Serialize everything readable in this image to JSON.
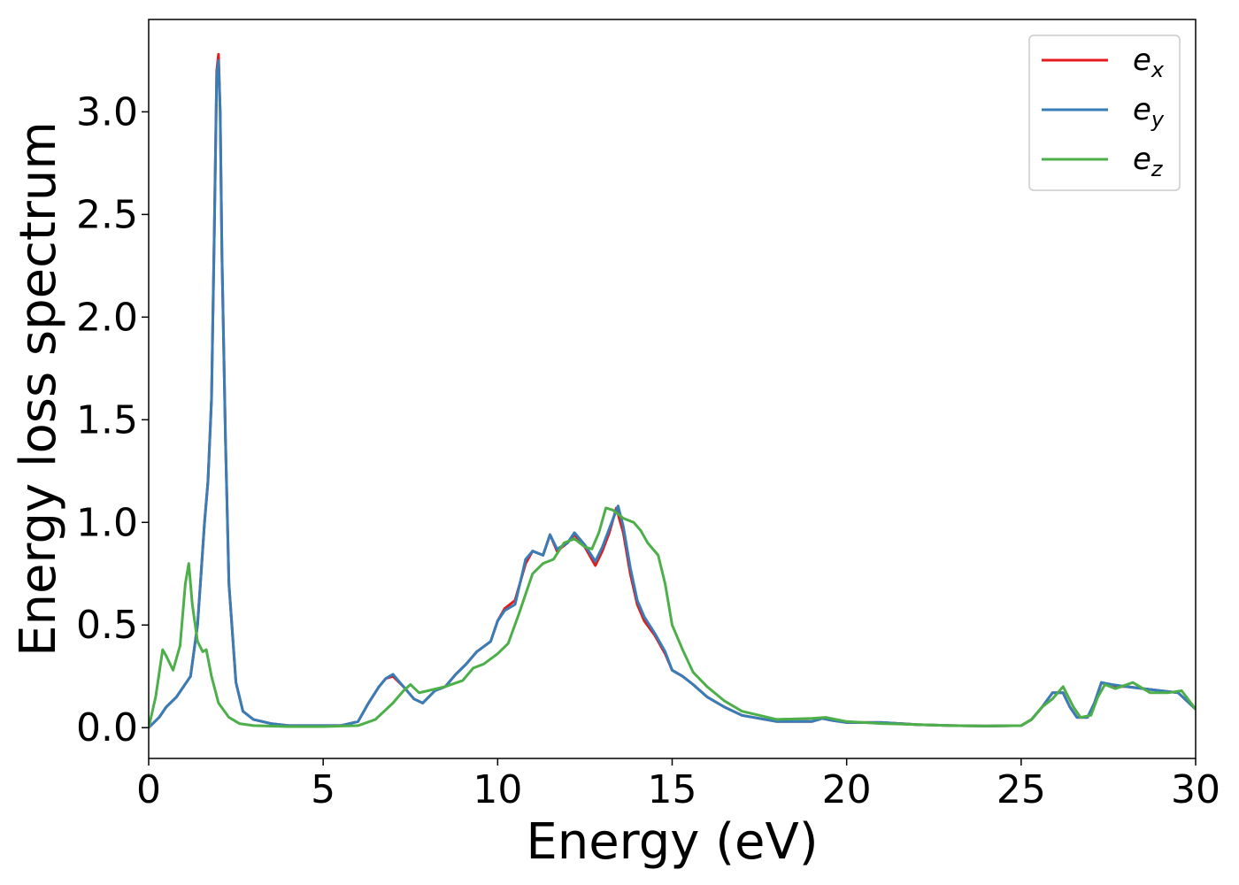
{
  "chart_data": {
    "type": "line",
    "xlabel": "Energy (eV)",
    "ylabel": "Energy loss spectrum",
    "xlim": [
      0,
      30
    ],
    "ylim": [
      -0.15,
      3.45
    ],
    "xticks": [
      "0",
      "5",
      "10",
      "15",
      "20",
      "25",
      "30"
    ],
    "yticks": [
      "0.0",
      "0.5",
      "1.0",
      "1.5",
      "2.0",
      "2.5",
      "3.0"
    ],
    "grid": false,
    "legend_position": "top-right",
    "series": [
      {
        "name": "e_x",
        "label_base": "e",
        "label_sub": "x",
        "color": "#e41a1c",
        "points": [
          [
            0,
            0
          ],
          [
            0.3,
            0.05
          ],
          [
            0.5,
            0.1
          ],
          [
            0.8,
            0.15
          ],
          [
            1.2,
            0.25
          ],
          [
            1.4,
            0.5
          ],
          [
            1.5,
            0.75
          ],
          [
            1.6,
            1.0
          ],
          [
            1.7,
            1.2
          ],
          [
            1.8,
            1.6
          ],
          [
            1.88,
            2.4
          ],
          [
            1.95,
            3.2
          ],
          [
            2.0,
            3.28
          ],
          [
            2.05,
            3.0
          ],
          [
            2.1,
            2.3
          ],
          [
            2.2,
            1.4
          ],
          [
            2.3,
            0.7
          ],
          [
            2.5,
            0.22
          ],
          [
            2.7,
            0.08
          ],
          [
            3.0,
            0.04
          ],
          [
            3.5,
            0.02
          ],
          [
            4,
            0.01
          ],
          [
            5,
            0.01
          ],
          [
            5.5,
            0.01
          ],
          [
            6,
            0.03
          ],
          [
            6.3,
            0.12
          ],
          [
            6.6,
            0.2
          ],
          [
            6.8,
            0.24
          ],
          [
            7.0,
            0.25
          ],
          [
            7.3,
            0.2
          ],
          [
            7.6,
            0.14
          ],
          [
            7.85,
            0.12
          ],
          [
            8.2,
            0.18
          ],
          [
            8.5,
            0.2
          ],
          [
            8.8,
            0.26
          ],
          [
            9.1,
            0.31
          ],
          [
            9.4,
            0.37
          ],
          [
            9.8,
            0.42
          ],
          [
            10.0,
            0.52
          ],
          [
            10.2,
            0.58
          ],
          [
            10.5,
            0.62
          ],
          [
            10.8,
            0.8
          ],
          [
            11.0,
            0.86
          ],
          [
            11.3,
            0.84
          ],
          [
            11.5,
            0.94
          ],
          [
            11.7,
            0.86
          ],
          [
            12.0,
            0.9
          ],
          [
            12.2,
            0.94
          ],
          [
            12.5,
            0.88
          ],
          [
            12.8,
            0.79
          ],
          [
            13.0,
            0.86
          ],
          [
            13.2,
            0.95
          ],
          [
            13.4,
            1.07
          ],
          [
            13.6,
            0.95
          ],
          [
            13.8,
            0.75
          ],
          [
            14.0,
            0.6
          ],
          [
            14.2,
            0.52
          ],
          [
            14.5,
            0.45
          ],
          [
            14.8,
            0.36
          ],
          [
            15.0,
            0.28
          ],
          [
            15.3,
            0.25
          ],
          [
            15.6,
            0.21
          ],
          [
            16.0,
            0.15
          ],
          [
            16.5,
            0.1
          ],
          [
            17,
            0.06
          ],
          [
            18,
            0.03
          ],
          [
            19,
            0.03
          ],
          [
            19.3,
            0.045
          ],
          [
            19.6,
            0.035
          ],
          [
            20,
            0.025
          ],
          [
            21,
            0.025
          ],
          [
            22,
            0.015
          ],
          [
            23,
            0.01
          ],
          [
            24,
            0.008
          ],
          [
            25,
            0.01
          ],
          [
            25.3,
            0.04
          ],
          [
            25.6,
            0.1
          ],
          [
            25.9,
            0.17
          ],
          [
            26.2,
            0.17
          ],
          [
            26.4,
            0.1
          ],
          [
            26.6,
            0.05
          ],
          [
            26.9,
            0.05
          ],
          [
            27.1,
            0.12
          ],
          [
            27.3,
            0.22
          ],
          [
            27.6,
            0.2
          ],
          [
            28,
            0.2
          ],
          [
            28.5,
            0.19
          ],
          [
            29,
            0.18
          ],
          [
            29.5,
            0.17
          ],
          [
            30,
            0.09
          ]
        ]
      },
      {
        "name": "e_y",
        "label_base": "e",
        "label_sub": "y",
        "color": "#377eb8",
        "points": [
          [
            0,
            0
          ],
          [
            0.3,
            0.05
          ],
          [
            0.5,
            0.1
          ],
          [
            0.8,
            0.15
          ],
          [
            1.2,
            0.25
          ],
          [
            1.4,
            0.5
          ],
          [
            1.5,
            0.75
          ],
          [
            1.6,
            1.0
          ],
          [
            1.7,
            1.2
          ],
          [
            1.8,
            1.6
          ],
          [
            1.88,
            2.4
          ],
          [
            1.95,
            3.18
          ],
          [
            2.0,
            3.25
          ],
          [
            2.05,
            3.0
          ],
          [
            2.1,
            2.3
          ],
          [
            2.2,
            1.4
          ],
          [
            2.3,
            0.7
          ],
          [
            2.5,
            0.22
          ],
          [
            2.7,
            0.08
          ],
          [
            3.0,
            0.04
          ],
          [
            3.5,
            0.02
          ],
          [
            4,
            0.01
          ],
          [
            5,
            0.01
          ],
          [
            5.5,
            0.01
          ],
          [
            6,
            0.03
          ],
          [
            6.3,
            0.12
          ],
          [
            6.6,
            0.2
          ],
          [
            6.8,
            0.24
          ],
          [
            7.0,
            0.26
          ],
          [
            7.3,
            0.2
          ],
          [
            7.6,
            0.14
          ],
          [
            7.85,
            0.12
          ],
          [
            8.2,
            0.18
          ],
          [
            8.5,
            0.2
          ],
          [
            8.8,
            0.26
          ],
          [
            9.1,
            0.31
          ],
          [
            9.4,
            0.37
          ],
          [
            9.8,
            0.42
          ],
          [
            10.0,
            0.52
          ],
          [
            10.2,
            0.57
          ],
          [
            10.5,
            0.6
          ],
          [
            10.8,
            0.82
          ],
          [
            11.0,
            0.86
          ],
          [
            11.3,
            0.84
          ],
          [
            11.5,
            0.94
          ],
          [
            11.7,
            0.87
          ],
          [
            12.0,
            0.9
          ],
          [
            12.2,
            0.95
          ],
          [
            12.5,
            0.89
          ],
          [
            12.8,
            0.81
          ],
          [
            13.0,
            0.88
          ],
          [
            13.2,
            0.97
          ],
          [
            13.45,
            1.08
          ],
          [
            13.6,
            0.98
          ],
          [
            13.8,
            0.78
          ],
          [
            14.0,
            0.62
          ],
          [
            14.2,
            0.54
          ],
          [
            14.5,
            0.46
          ],
          [
            14.8,
            0.37
          ],
          [
            15.0,
            0.28
          ],
          [
            15.3,
            0.25
          ],
          [
            15.6,
            0.21
          ],
          [
            16.0,
            0.15
          ],
          [
            16.5,
            0.1
          ],
          [
            17,
            0.06
          ],
          [
            18,
            0.03
          ],
          [
            19,
            0.03
          ],
          [
            19.3,
            0.045
          ],
          [
            19.6,
            0.035
          ],
          [
            20,
            0.025
          ],
          [
            21,
            0.025
          ],
          [
            22,
            0.015
          ],
          [
            23,
            0.01
          ],
          [
            24,
            0.008
          ],
          [
            25,
            0.01
          ],
          [
            25.3,
            0.04
          ],
          [
            25.6,
            0.1
          ],
          [
            25.9,
            0.17
          ],
          [
            26.2,
            0.17
          ],
          [
            26.4,
            0.1
          ],
          [
            26.6,
            0.05
          ],
          [
            26.9,
            0.05
          ],
          [
            27.1,
            0.12
          ],
          [
            27.3,
            0.22
          ],
          [
            27.6,
            0.21
          ],
          [
            28,
            0.2
          ],
          [
            28.5,
            0.19
          ],
          [
            29,
            0.18
          ],
          [
            29.5,
            0.17
          ],
          [
            30,
            0.09
          ]
        ]
      },
      {
        "name": "e_z",
        "label_base": "e",
        "label_sub": "z",
        "color": "#4daf4a",
        "points": [
          [
            0,
            0
          ],
          [
            0.2,
            0.15
          ],
          [
            0.4,
            0.38
          ],
          [
            0.5,
            0.35
          ],
          [
            0.7,
            0.28
          ],
          [
            0.9,
            0.4
          ],
          [
            1.05,
            0.7
          ],
          [
            1.15,
            0.8
          ],
          [
            1.25,
            0.6
          ],
          [
            1.4,
            0.42
          ],
          [
            1.55,
            0.37
          ],
          [
            1.65,
            0.38
          ],
          [
            1.8,
            0.25
          ],
          [
            2.0,
            0.12
          ],
          [
            2.3,
            0.05
          ],
          [
            2.6,
            0.02
          ],
          [
            3,
            0.01
          ],
          [
            4,
            0.005
          ],
          [
            5,
            0.005
          ],
          [
            6,
            0.01
          ],
          [
            6.5,
            0.04
          ],
          [
            7.0,
            0.12
          ],
          [
            7.3,
            0.18
          ],
          [
            7.5,
            0.21
          ],
          [
            7.75,
            0.17
          ],
          [
            8.0,
            0.18
          ],
          [
            8.5,
            0.2
          ],
          [
            9.0,
            0.23
          ],
          [
            9.3,
            0.29
          ],
          [
            9.6,
            0.31
          ],
          [
            10.0,
            0.36
          ],
          [
            10.3,
            0.41
          ],
          [
            10.6,
            0.55
          ],
          [
            10.8,
            0.65
          ],
          [
            11.0,
            0.75
          ],
          [
            11.3,
            0.8
          ],
          [
            11.6,
            0.82
          ],
          [
            11.9,
            0.9
          ],
          [
            12.2,
            0.92
          ],
          [
            12.5,
            0.88
          ],
          [
            12.7,
            0.87
          ],
          [
            12.9,
            0.95
          ],
          [
            13.1,
            1.07
          ],
          [
            13.3,
            1.06
          ],
          [
            13.6,
            1.02
          ],
          [
            13.9,
            1.0
          ],
          [
            14.1,
            0.96
          ],
          [
            14.3,
            0.9
          ],
          [
            14.6,
            0.84
          ],
          [
            14.8,
            0.7
          ],
          [
            15.0,
            0.5
          ],
          [
            15.3,
            0.38
          ],
          [
            15.6,
            0.27
          ],
          [
            16.0,
            0.2
          ],
          [
            16.5,
            0.13
          ],
          [
            17,
            0.08
          ],
          [
            17.5,
            0.06
          ],
          [
            18,
            0.04
          ],
          [
            19,
            0.045
          ],
          [
            19.4,
            0.05
          ],
          [
            20,
            0.03
          ],
          [
            21,
            0.02
          ],
          [
            22,
            0.015
          ],
          [
            23,
            0.01
          ],
          [
            24,
            0.008
          ],
          [
            25,
            0.01
          ],
          [
            25.3,
            0.04
          ],
          [
            25.6,
            0.1
          ],
          [
            25.9,
            0.14
          ],
          [
            26.2,
            0.2
          ],
          [
            26.5,
            0.1
          ],
          [
            26.7,
            0.05
          ],
          [
            27.0,
            0.06
          ],
          [
            27.2,
            0.15
          ],
          [
            27.4,
            0.21
          ],
          [
            27.7,
            0.19
          ],
          [
            28.2,
            0.22
          ],
          [
            28.7,
            0.17
          ],
          [
            29.2,
            0.17
          ],
          [
            29.6,
            0.18
          ],
          [
            30,
            0.09
          ]
        ]
      }
    ]
  }
}
